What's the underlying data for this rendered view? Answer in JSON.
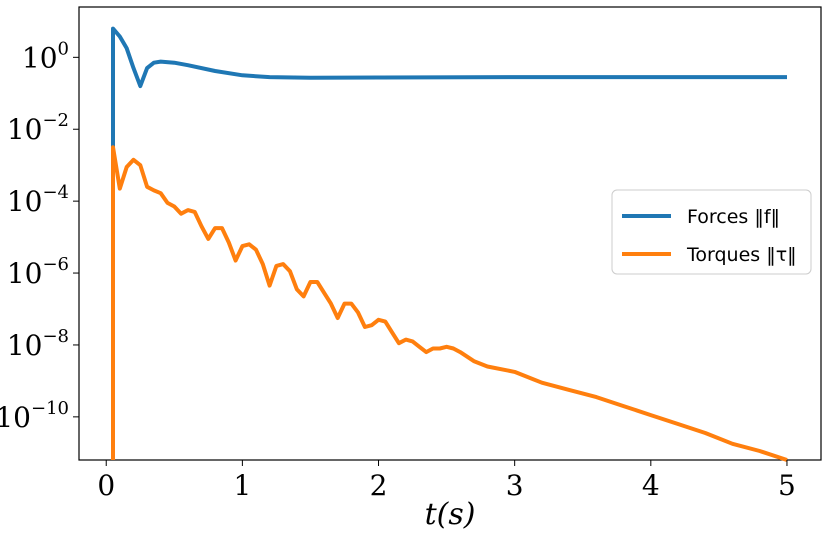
{
  "chart_data": {
    "type": "line",
    "title": "",
    "xlabel": "t(s)",
    "ylabel": "",
    "xlim": [
      -0.2,
      5.25
    ],
    "ylim_log10": [
      -11.2,
      1.4
    ],
    "y_scale": "log",
    "grid": false,
    "legend_position": "right",
    "x_ticks": [
      0,
      1,
      2,
      3,
      4,
      5
    ],
    "x_tick_labels": [
      "0",
      "1",
      "2",
      "3",
      "4",
      "5"
    ],
    "y_ticks_log10": [
      0,
      -2,
      -4,
      -6,
      -8,
      -10
    ],
    "y_tick_labels": [
      {
        "base": "10",
        "exp": "0"
      },
      {
        "base": "10",
        "exp": "−2"
      },
      {
        "base": "10",
        "exp": "−4"
      },
      {
        "base": "10",
        "exp": "−6"
      },
      {
        "base": "10",
        "exp": "−8"
      },
      {
        "base": "10",
        "exp": "−10"
      }
    ],
    "series": [
      {
        "name": "Forces ‖f‖",
        "color": "#1f77b4",
        "x": [
          0.05,
          0.05,
          0.1,
          0.15,
          0.2,
          0.25,
          0.3,
          0.35,
          0.4,
          0.5,
          0.6,
          0.8,
          1.0,
          1.2,
          1.5,
          2.0,
          3.0,
          4.0,
          5.0
        ],
        "log10y": [
          -11.5,
          0.8,
          0.58,
          0.25,
          -0.3,
          -0.8,
          -0.3,
          -0.15,
          -0.12,
          -0.15,
          -0.22,
          -0.38,
          -0.5,
          -0.55,
          -0.57,
          -0.56,
          -0.55,
          -0.55,
          -0.55
        ]
      },
      {
        "name": "Torques ‖τ‖",
        "color": "#ff7f0e",
        "x": [
          0.05,
          0.05,
          0.1,
          0.15,
          0.2,
          0.25,
          0.3,
          0.35,
          0.4,
          0.45,
          0.5,
          0.55,
          0.6,
          0.65,
          0.7,
          0.75,
          0.8,
          0.85,
          0.9,
          0.95,
          1.0,
          1.05,
          1.1,
          1.15,
          1.2,
          1.25,
          1.3,
          1.35,
          1.4,
          1.45,
          1.5,
          1.55,
          1.6,
          1.65,
          1.7,
          1.75,
          1.8,
          1.85,
          1.9,
          1.95,
          2.0,
          2.05,
          2.1,
          2.15,
          2.2,
          2.25,
          2.3,
          2.35,
          2.4,
          2.45,
          2.5,
          2.55,
          2.6,
          2.7,
          2.8,
          3.0,
          3.2,
          3.4,
          3.6,
          3.8,
          4.0,
          4.2,
          4.4,
          4.6,
          4.8,
          5.0
        ],
        "log10y": [
          -11.2,
          -2.5,
          -3.65,
          -3.05,
          -2.85,
          -3.0,
          -3.6,
          -3.7,
          -3.78,
          -4.05,
          -4.15,
          -4.35,
          -4.25,
          -4.3,
          -4.7,
          -5.05,
          -4.75,
          -4.75,
          -5.15,
          -5.65,
          -5.25,
          -5.2,
          -5.35,
          -5.75,
          -6.35,
          -5.8,
          -5.75,
          -5.95,
          -6.45,
          -6.65,
          -6.25,
          -6.25,
          -6.55,
          -6.85,
          -7.25,
          -6.85,
          -6.85,
          -7.1,
          -7.5,
          -7.45,
          -7.3,
          -7.35,
          -7.65,
          -7.95,
          -7.85,
          -7.9,
          -8.05,
          -8.2,
          -8.1,
          -8.1,
          -8.05,
          -8.1,
          -8.2,
          -8.45,
          -8.6,
          -8.75,
          -9.05,
          -9.25,
          -9.45,
          -9.7,
          -9.95,
          -10.2,
          -10.45,
          -10.75,
          -10.95,
          -11.2
        ]
      }
    ]
  }
}
